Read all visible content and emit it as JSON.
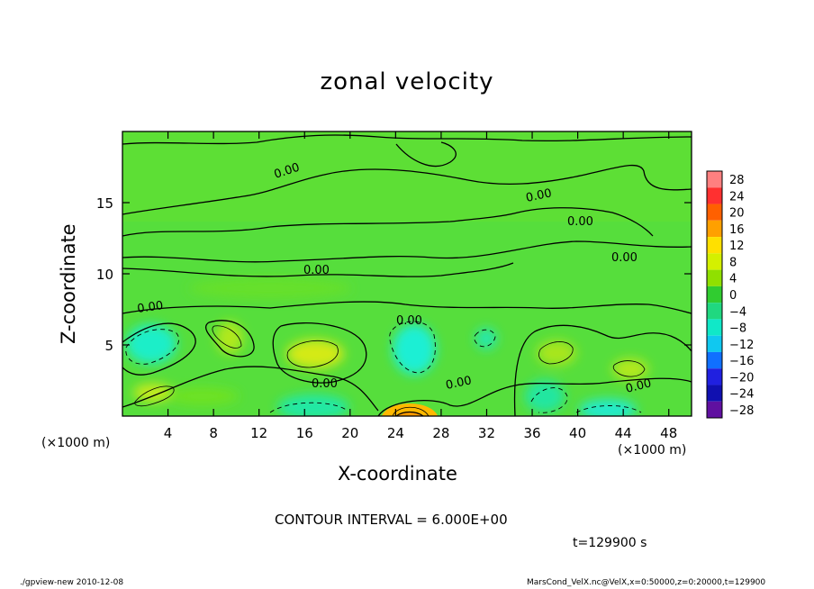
{
  "chart_data": {
    "type": "heatmap",
    "title": "zonal velocity",
    "xlabel": "X-coordinate",
    "ylabel": "Z-coordinate",
    "x_unit_label": "(×1000 m)",
    "xlim": [
      0,
      50
    ],
    "ylim": [
      0,
      20
    ],
    "x_ticks": [
      4,
      8,
      12,
      16,
      20,
      24,
      28,
      32,
      36,
      40,
      44,
      48
    ],
    "y_ticks": [
      5,
      10,
      15
    ],
    "colorbar": {
      "levels": [
        28,
        24,
        20,
        16,
        12,
        8,
        4,
        0,
        -4,
        -8,
        -12,
        -16,
        -20,
        -24,
        -28
      ],
      "colors": [
        "#ff8080",
        "#ff3030",
        "#ff6000",
        "#ffa000",
        "#ffe000",
        "#d4f000",
        "#90e000",
        "#30cc30",
        "#20d880",
        "#10e8c8",
        "#10c8f0",
        "#1070ff",
        "#2020e0",
        "#1010b0",
        "#6010a0"
      ]
    },
    "contour_label": "0.00",
    "contour_interval_text": "CONTOUR INTERVAL = 6.000E+00",
    "time_text": "t=129900 s"
  },
  "footer": {
    "left": "./gpview-new  2010-12-08",
    "right": "MarsCond_VelX.nc@VelX,x=0:50000,z=0:20000,t=129900"
  }
}
